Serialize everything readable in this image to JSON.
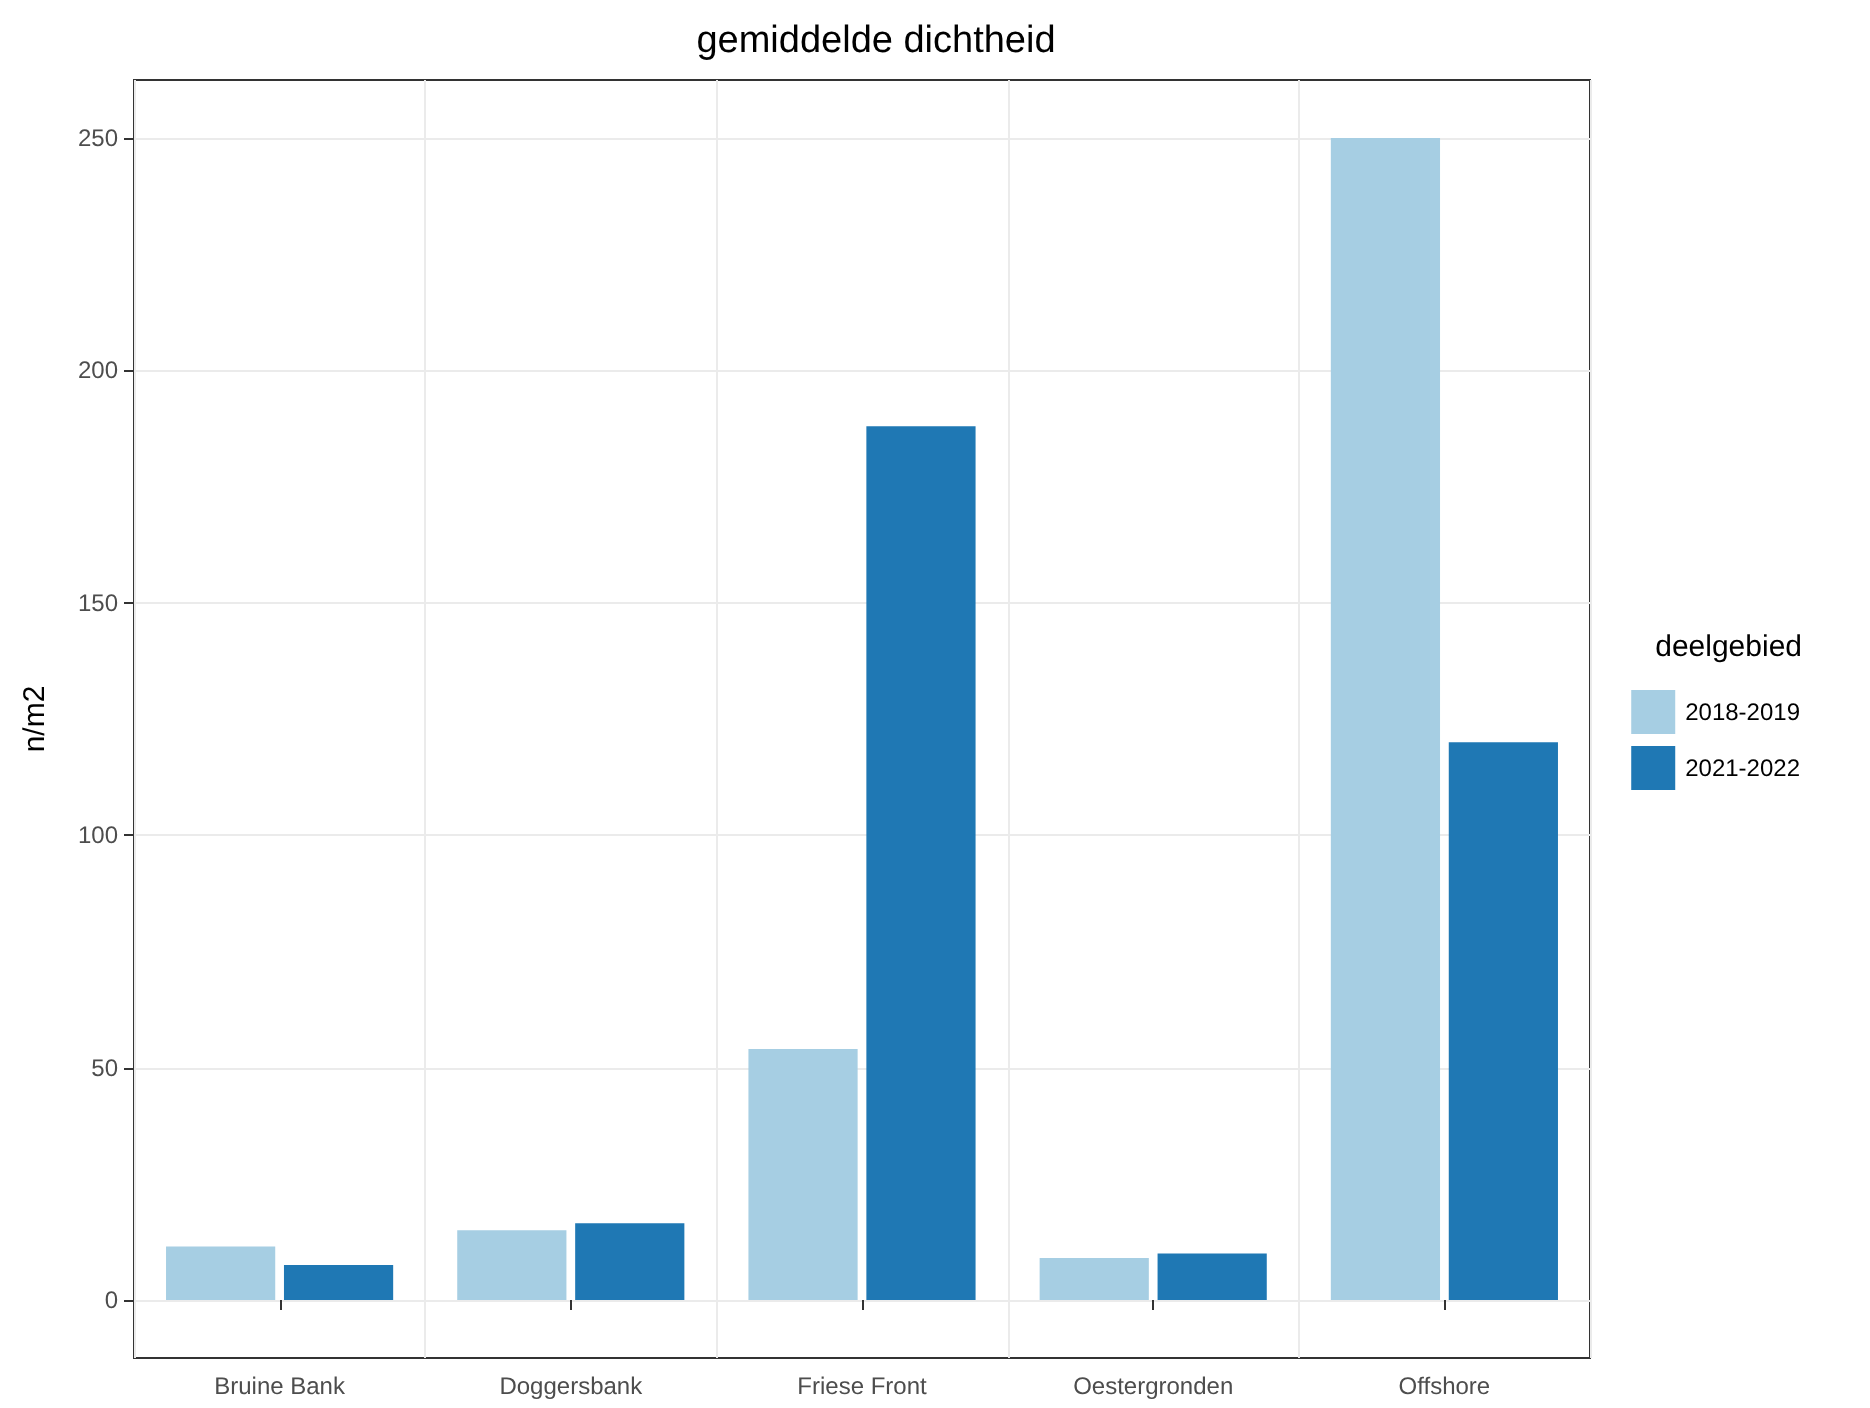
{
  "chart_data": {
    "type": "bar",
    "title": "gemiddelde dichtheid",
    "ylabel": "n/m2",
    "legend_title": "deelgebied",
    "categories": [
      "Bruine Bank",
      "Doggersbank",
      "Friese Front",
      "Oestergronden",
      "Offshore"
    ],
    "series": [
      {
        "name": "2018-2019",
        "color": "#a6cee3",
        "values": [
          11.5,
          15,
          54,
          9,
          250
        ]
      },
      {
        "name": "2021-2022",
        "color": "#1f78b4",
        "values": [
          7.5,
          16.5,
          188,
          10,
          120
        ]
      }
    ],
    "ylim": [
      -12.5,
      262.5
    ],
    "yticks": [
      0,
      50,
      100,
      150,
      200,
      250
    ],
    "grid": true,
    "legend": "right"
  }
}
